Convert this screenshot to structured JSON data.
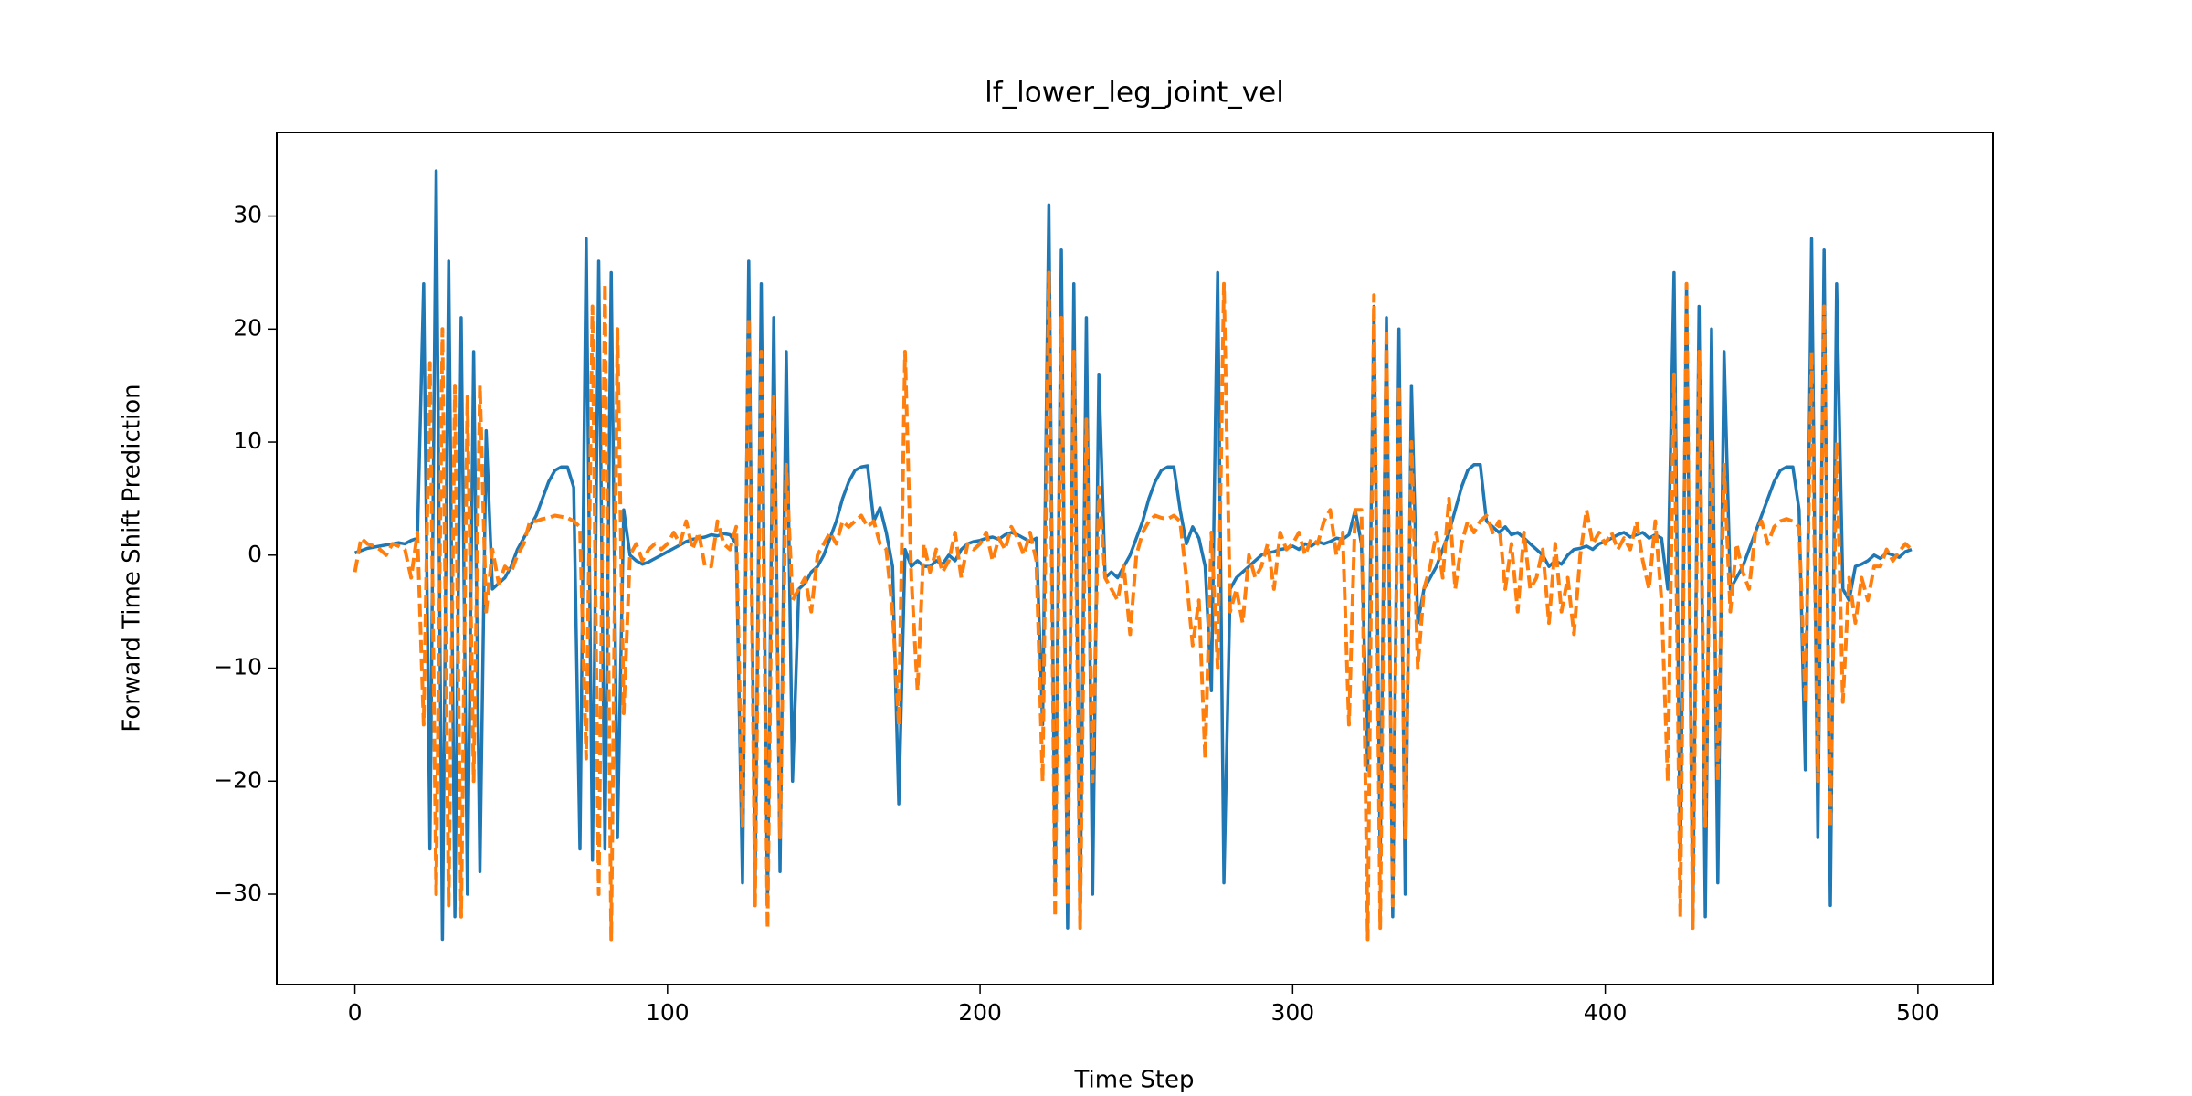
{
  "chart_data": {
    "type": "line",
    "title": "lf_lower_leg_joint_vel",
    "x_label": "Time Step",
    "y_label": "Forward Time Shift Prediction",
    "x": [
      0,
      2,
      4,
      6,
      8,
      10,
      12,
      14,
      16,
      18,
      20,
      22,
      24,
      26,
      28,
      30,
      32,
      34,
      36,
      38,
      40,
      42,
      44,
      46,
      48,
      50,
      52,
      54,
      56,
      58,
      60,
      62,
      64,
      66,
      68,
      70,
      72,
      74,
      76,
      78,
      80,
      82,
      84,
      86,
      88,
      90,
      92,
      94,
      96,
      98,
      100,
      102,
      104,
      106,
      108,
      110,
      112,
      114,
      116,
      118,
      120,
      122,
      124,
      126,
      128,
      130,
      132,
      134,
      136,
      138,
      140,
      142,
      144,
      146,
      148,
      150,
      152,
      154,
      156,
      158,
      160,
      162,
      164,
      166,
      168,
      170,
      172,
      174,
      176,
      178,
      180,
      182,
      184,
      186,
      188,
      190,
      192,
      194,
      196,
      198,
      200,
      202,
      204,
      206,
      208,
      210,
      212,
      214,
      216,
      218,
      220,
      222,
      224,
      226,
      228,
      230,
      232,
      234,
      236,
      238,
      240,
      242,
      244,
      246,
      248,
      250,
      252,
      254,
      256,
      258,
      260,
      262,
      264,
      266,
      268,
      270,
      272,
      274,
      276,
      278,
      280,
      282,
      284,
      286,
      288,
      290,
      292,
      294,
      296,
      298,
      300,
      302,
      304,
      306,
      308,
      310,
      312,
      314,
      316,
      318,
      320,
      322,
      324,
      326,
      328,
      330,
      332,
      334,
      336,
      338,
      340,
      342,
      344,
      346,
      348,
      350,
      352,
      354,
      356,
      358,
      360,
      362,
      364,
      366,
      368,
      370,
      372,
      374,
      376,
      378,
      380,
      382,
      384,
      386,
      388,
      390,
      392,
      394,
      396,
      398,
      400,
      402,
      404,
      406,
      408,
      410,
      412,
      414,
      416,
      418,
      420,
      422,
      424,
      426,
      428,
      430,
      432,
      434,
      436,
      438,
      440,
      442,
      444,
      446,
      448,
      450,
      452,
      454,
      456,
      458,
      460,
      462,
      464,
      466,
      468,
      470,
      472,
      474,
      476,
      478,
      480,
      482,
      484,
      486,
      488,
      490,
      492,
      494,
      496,
      498
    ],
    "series": [
      {
        "color": "#1f77b4",
        "dashed": false,
        "values": [
          0.2,
          0.4,
          0.6,
          0.7,
          0.8,
          0.9,
          1.0,
          1.1,
          1.0,
          1.3,
          1.5,
          24,
          -26,
          34,
          -34,
          26,
          -32,
          21,
          -30,
          18,
          -28,
          11,
          -3,
          -2.5,
          -2,
          -1,
          0.5,
          1.5,
          2.5,
          3.5,
          5,
          6.5,
          7.5,
          7.8,
          7.8,
          6,
          -26,
          28,
          -27,
          26,
          -26,
          25,
          -25,
          4,
          0,
          -0.5,
          -0.8,
          -0.6,
          -0.3,
          0,
          0.3,
          0.6,
          0.9,
          1.2,
          1.4,
          1.5,
          1.6,
          1.8,
          1.7,
          1.9,
          1.8,
          1,
          -29,
          26,
          -30,
          24,
          -31,
          21,
          -28,
          18,
          -20,
          -3,
          -2.5,
          -1.5,
          -1,
          0,
          1.5,
          3,
          5,
          6.5,
          7.5,
          7.8,
          7.9,
          3,
          4.2,
          2,
          -1,
          -22,
          0.5,
          -1,
          -0.5,
          -1,
          -1,
          -0.5,
          -0.8,
          0,
          -0.5,
          0.5,
          1,
          1.2,
          1.3,
          1.5,
          1.6,
          1.4,
          1.8,
          2,
          1.8,
          1.5,
          1.2,
          1.5,
          -15,
          31,
          -30,
          27,
          -33,
          24,
          -32,
          21,
          -30,
          16,
          -2,
          -1.5,
          -2,
          -1,
          0,
          1.5,
          3,
          5,
          6.5,
          7.5,
          7.8,
          7.8,
          4,
          1,
          2.5,
          1.5,
          -1,
          -12,
          25,
          -29,
          -3,
          -2,
          -1.5,
          -1,
          -0.5,
          0,
          0.2,
          0.3,
          0.5,
          0.6,
          0.8,
          0.5,
          1,
          0.8,
          1.2,
          1,
          1.2,
          1.5,
          1.4,
          1.8,
          4,
          1,
          -19,
          22,
          -27,
          21,
          -32,
          20,
          -30,
          15,
          -6,
          -3,
          -2,
          -1,
          0.5,
          2,
          4,
          6,
          7.5,
          8,
          8,
          3,
          2.5,
          2,
          2.5,
          1.8,
          2,
          1.5,
          1,
          0.5,
          0,
          -1,
          -0.5,
          -0.8,
          0,
          0.5,
          0.6,
          0.8,
          0.5,
          1,
          1.2,
          1.5,
          1.8,
          2,
          1.6,
          1.8,
          2,
          1.5,
          1.8,
          1.5,
          -3,
          25,
          -27,
          24,
          -32,
          22,
          -32,
          20,
          -29,
          18,
          -3,
          -2,
          -1,
          0.5,
          2,
          3.5,
          5,
          6.5,
          7.5,
          7.8,
          7.8,
          4,
          -19,
          28,
          -25,
          27,
          -31,
          24,
          -3,
          -4,
          -1,
          -0.8,
          -0.5,
          0,
          -0.3,
          0.2,
          0,
          -0.2,
          0.3,
          0.5
        ]
      },
      {
        "color": "#ff7f0e",
        "dashed": true,
        "values": [
          -1.5,
          1.5,
          1,
          0.8,
          0.5,
          0,
          1,
          0.8,
          0.5,
          -2,
          2,
          -15,
          17,
          -30,
          20,
          -31,
          15,
          -32,
          14,
          -20,
          15,
          -5,
          0.5,
          -2.5,
          -1,
          -1.5,
          0,
          1,
          3,
          3,
          3.2,
          3.3,
          3.5,
          3.4,
          3.3,
          3,
          2.5,
          -18,
          22,
          -30,
          24,
          -34,
          20,
          -14,
          0,
          1,
          -0.5,
          0.5,
          1,
          0.5,
          1,
          2,
          1,
          3,
          0.5,
          2,
          -1,
          -1,
          3,
          1,
          0.5,
          2.5,
          -24,
          21,
          -31,
          18,
          -33,
          14,
          -25,
          8,
          -4,
          -3,
          -2,
          -5,
          0,
          1,
          2,
          1,
          3,
          2.5,
          3,
          3.5,
          2.5,
          3,
          1,
          0.5,
          -5,
          -15,
          18,
          -2,
          -12,
          1,
          -1.5,
          0.5,
          -1.5,
          -0.5,
          2,
          -2,
          1,
          0.5,
          1,
          2,
          -0.5,
          1.5,
          0.5,
          2.5,
          1.5,
          0,
          2,
          -0.5,
          -20,
          25,
          -32,
          21,
          -31,
          18,
          -33,
          12,
          -20,
          6,
          -2,
          -3,
          -4,
          -1,
          -7,
          0,
          2,
          3,
          3.5,
          3.3,
          3.2,
          3.5,
          3,
          -2,
          -8,
          -4,
          -18,
          2,
          -10,
          24,
          -5,
          -3,
          -6,
          0,
          -2,
          -1,
          1,
          -3,
          2,
          0.5,
          1,
          2,
          0,
          1.5,
          1,
          3,
          4,
          0,
          2,
          -15,
          4,
          4,
          -34,
          23,
          -33,
          20,
          -31,
          15,
          -25,
          10,
          -10,
          -3,
          -1,
          2,
          -2,
          5,
          -3,
          1,
          3,
          2,
          3,
          3.5,
          2,
          3,
          -3,
          1,
          -5,
          2,
          -3,
          -2,
          0.5,
          -6,
          1,
          -5,
          -2,
          -7,
          0,
          4,
          1,
          2,
          1,
          2,
          0.5,
          1.5,
          0.5,
          3,
          -0.5,
          -3,
          3,
          -4,
          -20,
          16,
          -32,
          24,
          -33,
          18,
          -24,
          10,
          -20,
          8,
          -5,
          1,
          -1.5,
          -3,
          2,
          3,
          1,
          2.5,
          3,
          3.2,
          3,
          2.5,
          -13,
          18,
          -20,
          22,
          -24,
          10,
          -13,
          -2,
          -6,
          -2,
          -4,
          -1,
          -1,
          0.5,
          -0.5,
          0.3,
          1,
          0.5
        ]
      }
    ],
    "xlim": [
      -25,
      524
    ],
    "ylim": [
      -38,
      37.4
    ],
    "xticks": [
      0,
      100,
      200,
      300,
      400,
      500
    ],
    "yticks": [
      {
        "value": -30,
        "label": "−30"
      },
      {
        "value": -20,
        "label": "−20"
      },
      {
        "value": -10,
        "label": "−10"
      },
      0,
      10,
      20,
      30
    ],
    "grid": false
  }
}
